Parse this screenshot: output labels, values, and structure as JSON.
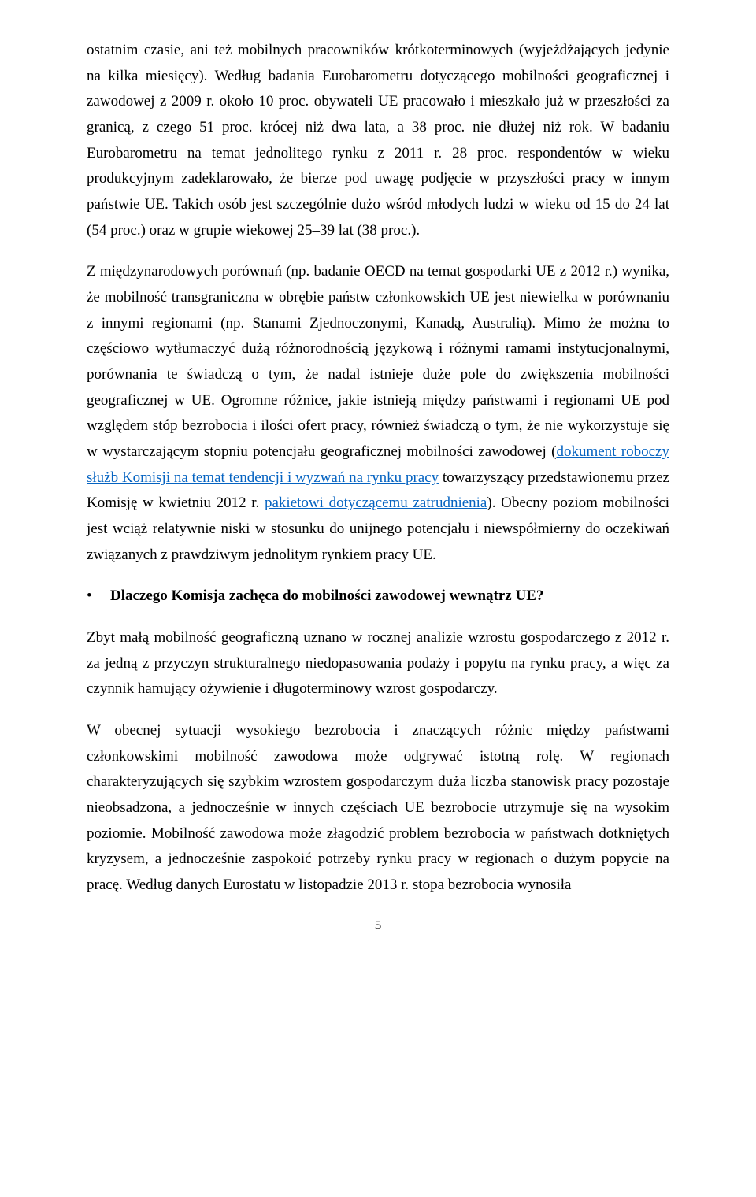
{
  "paragraphs": {
    "p1_a": "ostatnim czasie, ani też mobilnych pracowników krótkoterminowych (wyjeżdżających jedynie na kilka miesięcy). Według badania Eurobarometru dotyczącego mobilności geograficznej i zawodowej z 2009 r. około 10 proc. obywateli UE pracowało i mieszkało już w przeszłości za granicą, z czego 51 proc. krócej niż dwa lata, a 38 proc. nie dłużej niż rok. W badaniu Eurobarometru na temat jednolitego rynku z 2011 r. 28 proc. respondentów w wieku produkcyjnym zadeklarowało, że bierze pod uwagę podjęcie w przyszłości pracy w innym państwie UE. Takich osób jest szczególnie dużo wśród młodych ludzi w wieku od 15 do 24 lat (54 proc.) oraz w grupie wiekowej 25–39 lat (38 proc.).",
    "p2_a": "Z międzynarodowych porównań (np. badanie OECD na temat gospodarki UE z 2012 r.) wynika, że mobilność transgraniczna w obrębie państw członkowskich UE jest niewielka w porównaniu z innymi regionami (np. Stanami Zjednoczonymi, Kanadą, Australią). Mimo że można to częściowo wytłumaczyć dużą różnorodnością językową i różnymi ramami instytucjonalnymi, porównania te świadczą o tym, że nadal istnieje duże pole do zwiększenia mobilności geograficznej w UE. Ogromne różnice, jakie istnieją między państwami i regionami UE pod względem stóp bezrobocia i ilości ofert pracy, również świadczą o tym, że nie wykorzystuje się w wystarczającym stopniu potencjału geograficznej mobilności zawodowej (",
    "p2_link1": "dokument roboczy służb Komisji na temat tendencji i wyzwań na rynku pracy",
    "p2_b": " towarzyszący przedstawionemu przez Komisję w kwietniu 2012 r. ",
    "p2_link2": "pakietowi dotyczącemu zatrudnienia",
    "p2_c": "). Obecny poziom mobilności jest wciąż relatywnie niski w stosunku do unijnego potencjału i niewspółmierny do oczekiwań związanych z prawdziwym jednolitym rynkiem pracy UE.",
    "bullet_heading": "Dlaczego Komisja zachęca do mobilności zawodowej wewnątrz UE?",
    "p3": "Zbyt małą mobilność geograficzną uznano w rocznej analizie wzrostu gospodarczego z 2012 r. za jedną z przyczyn strukturalnego niedopasowania podaży i popytu na rynku pracy, a więc za czynnik hamujący ożywienie i długoterminowy wzrost gospodarczy.",
    "p4": "W obecnej sytuacji wysokiego bezrobocia i znaczących różnic między państwami członkowskimi mobilność zawodowa może odgrywać istotną rolę. W regionach charakteryzujących się szybkim wzrostem gospodarczym duża liczba stanowisk pracy pozostaje nieobsadzona, a jednocześnie w innych częściach UE bezrobocie utrzymuje się na wysokim poziomie. Mobilność zawodowa może złagodzić problem bezrobocia w państwach dotkniętych kryzysem, a jednocześnie zaspokoić potrzeby rynku pracy w regionach o dużym popycie na pracę. Według danych Eurostatu w listopadzie 2013 r. stopa bezrobocia wynosiła"
  },
  "bullet_symbol": "•",
  "page_number": "5",
  "colors": {
    "background": "#ffffff",
    "text": "#000000",
    "link": "#0563c1"
  }
}
